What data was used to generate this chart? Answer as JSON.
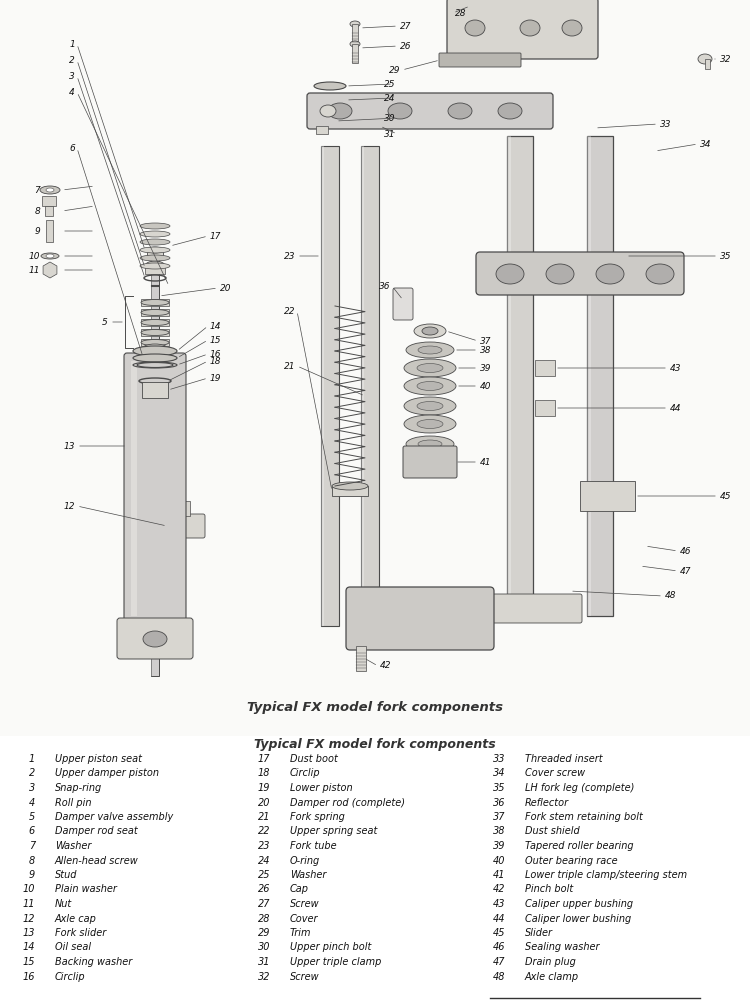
{
  "title": "Typical FX model fork components",
  "bg_color": "#f5f4f0",
  "fig_width": 7.5,
  "fig_height": 10.06,
  "dpi": 100,
  "parts": [
    [
      1,
      "Upper piston seat"
    ],
    [
      2,
      "Upper damper piston"
    ],
    [
      3,
      "Snap-ring"
    ],
    [
      4,
      "Roll pin"
    ],
    [
      5,
      "Damper valve assembly"
    ],
    [
      6,
      "Damper rod seat"
    ],
    [
      7,
      "Washer"
    ],
    [
      8,
      "Allen-head screw"
    ],
    [
      9,
      "Stud"
    ],
    [
      10,
      "Plain washer"
    ],
    [
      11,
      "Nut"
    ],
    [
      12,
      "Axle cap"
    ],
    [
      13,
      "Fork slider"
    ],
    [
      14,
      "Oil seal"
    ],
    [
      15,
      "Backing washer"
    ],
    [
      16,
      "Circlip"
    ],
    [
      17,
      "Dust boot"
    ],
    [
      18,
      "Circlip"
    ],
    [
      19,
      "Lower piston"
    ],
    [
      20,
      "Damper rod (complete)"
    ],
    [
      21,
      "Fork spring"
    ],
    [
      22,
      "Upper spring seat"
    ],
    [
      23,
      "Fork tube"
    ],
    [
      24,
      "O-ring"
    ],
    [
      25,
      "Washer"
    ],
    [
      26,
      "Cap"
    ],
    [
      27,
      "Screw"
    ],
    [
      28,
      "Cover"
    ],
    [
      29,
      "Trim"
    ],
    [
      30,
      "Upper pinch bolt"
    ],
    [
      31,
      "Upper triple clamp"
    ],
    [
      32,
      "Screw"
    ],
    [
      33,
      "Threaded insert"
    ],
    [
      34,
      "Cover screw"
    ],
    [
      35,
      "LH fork leg (complete)"
    ],
    [
      36,
      "Reflector"
    ],
    [
      37,
      "Fork stem retaining bolt"
    ],
    [
      38,
      "Dust shield"
    ],
    [
      39,
      "Tapered roller bearing"
    ],
    [
      40,
      "Outer bearing race"
    ],
    [
      41,
      "Lower triple clamp/steering stem"
    ],
    [
      42,
      "Pinch bolt"
    ],
    [
      43,
      "Caliper upper bushing"
    ],
    [
      44,
      "Caliper lower bushing"
    ],
    [
      45,
      "Slider"
    ],
    [
      46,
      "Sealing washer"
    ],
    [
      47,
      "Drain plug"
    ],
    [
      48,
      "Axle clamp"
    ]
  ],
  "lc": "#4a4a4a",
  "tc": "#111111",
  "part_fc": "#d8d6d0",
  "part_fc2": "#c8c6c0",
  "part_fc3": "#e8e6e0"
}
